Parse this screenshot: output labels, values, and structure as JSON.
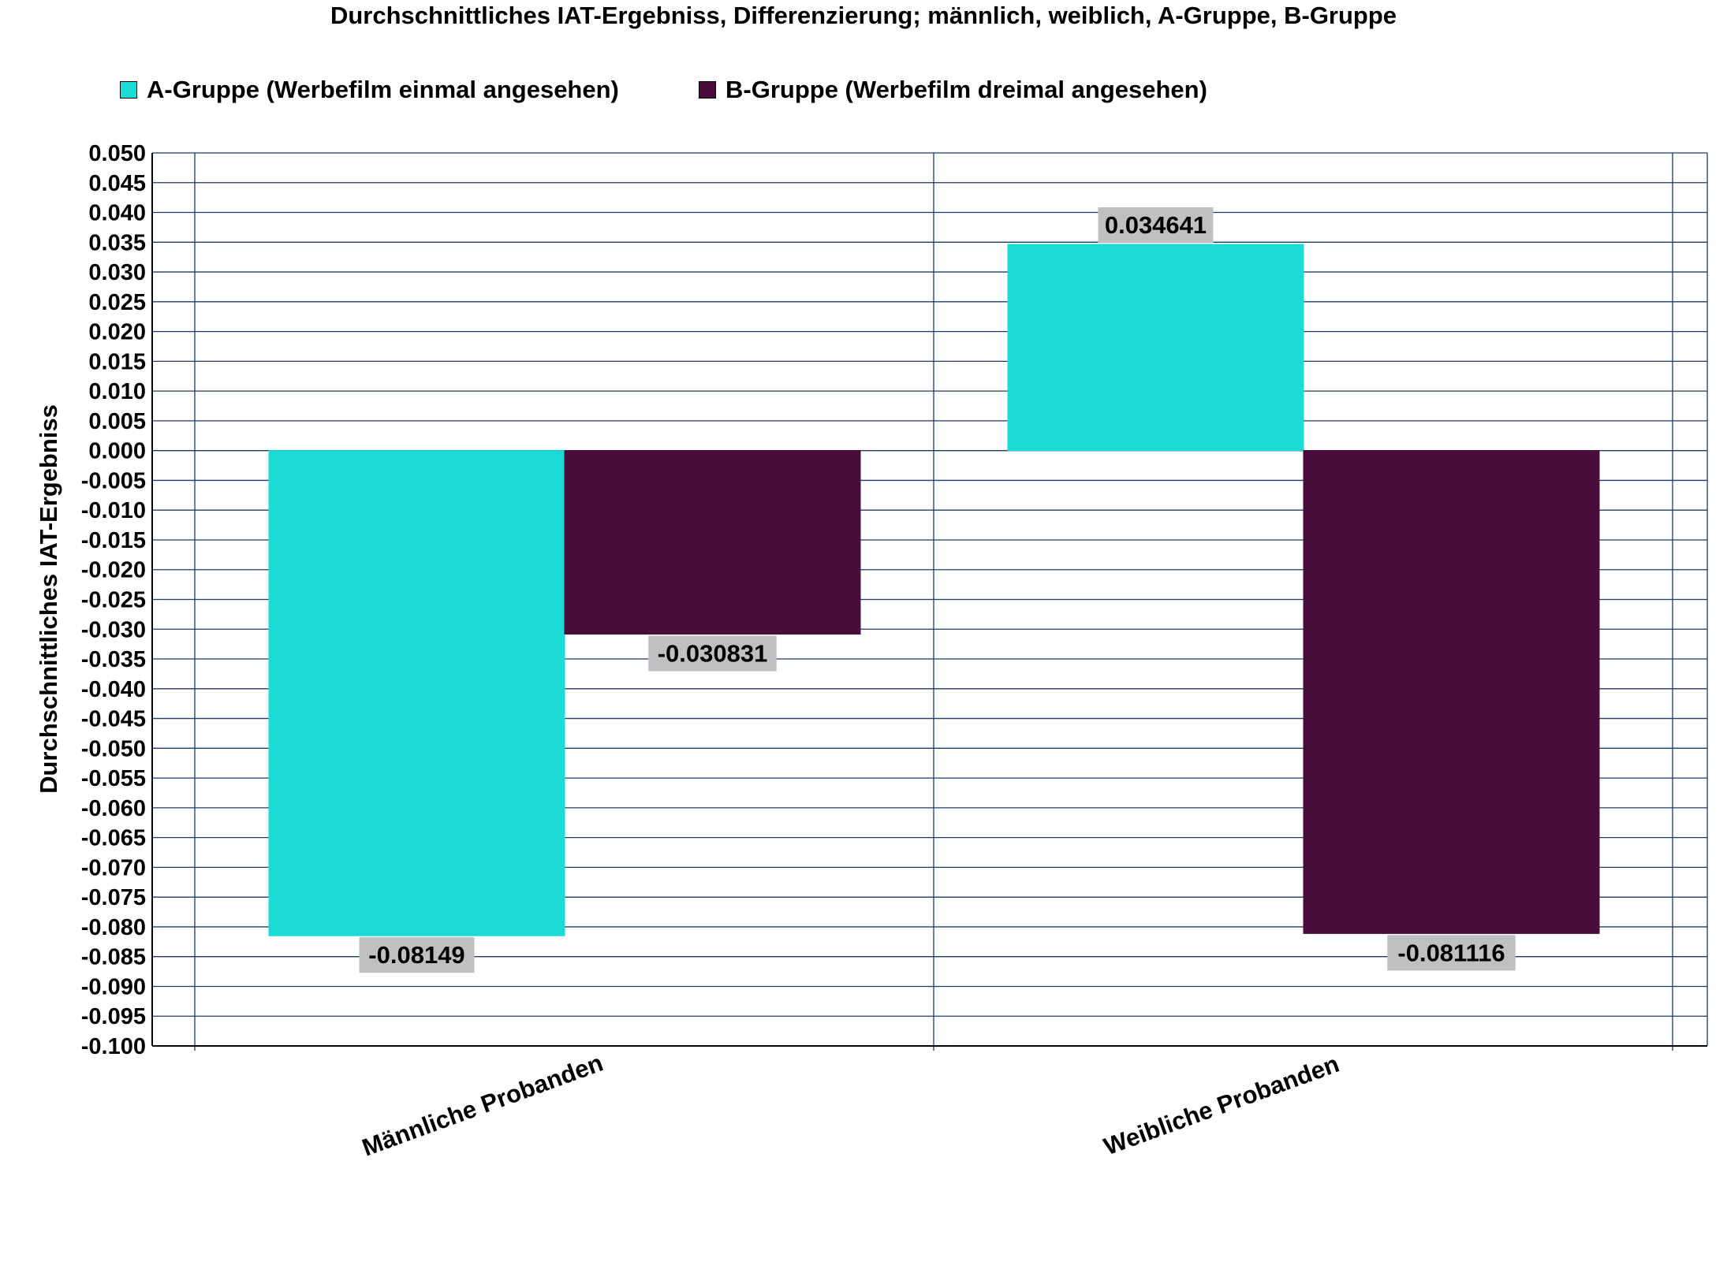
{
  "chart_data": {
    "type": "bar",
    "title": "Durchschnittliches IAT-Ergebniss, Differenzierung; männlich, weiblich, A-Gruppe, B-Gruppe",
    "xlabel": "",
    "ylabel": "Durchschnittliches IAT-Ergebniss",
    "categories": [
      "Männliche Probanden",
      "Weibliche Probanden"
    ],
    "series": [
      {
        "name": "A-Gruppe (Werbefilm einmal angesehen)",
        "color": "#1CDBD5",
        "values": [
          -0.08149,
          0.034641
        ],
        "labels": [
          "-0.08149",
          "0.034641"
        ]
      },
      {
        "name": "B-Gruppe (Werbefilm dreimal angesehen)",
        "color": "#4A0C3B",
        "values": [
          -0.030831,
          -0.081116
        ],
        "labels": [
          "-0.030831",
          "-0.081116"
        ]
      }
    ],
    "ylim": [
      -0.1,
      0.05
    ],
    "ytick_step": 0.005,
    "yticks": [
      "0.050",
      "0.045",
      "0.040",
      "0.035",
      "0.030",
      "0.025",
      "0.020",
      "0.015",
      "0.010",
      "0.005",
      "0.000",
      "-0.005",
      "-0.010",
      "-0.015",
      "-0.020",
      "-0.025",
      "-0.030",
      "-0.035",
      "-0.040",
      "-0.045",
      "-0.050",
      "-0.055",
      "-0.060",
      "-0.065",
      "-0.070",
      "-0.075",
      "-0.080",
      "-0.085",
      "-0.090",
      "-0.095",
      "-0.100"
    ],
    "grid": true,
    "legend_position": "top",
    "gridline_color": "#1F3A68",
    "label_box_color": "#C0C0C0"
  }
}
